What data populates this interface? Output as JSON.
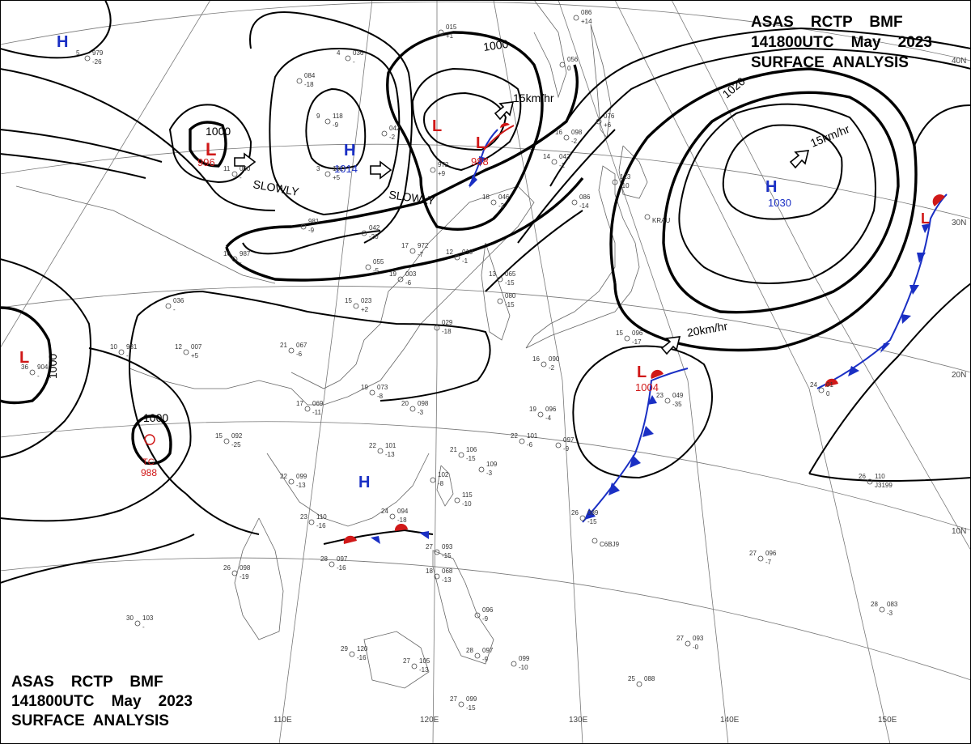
{
  "header_top": {
    "line1": "ASAS    RCTP    BMF",
    "line2": "141800UTC    May    2023",
    "line3": "SURFACE  ANALYSIS"
  },
  "header_bottom": {
    "line1": "ASAS    RCTP    BMF",
    "line2": "141800UTC    May    2023",
    "line3": "SURFACE  ANALYSIS"
  },
  "lat_labels": [
    "40N",
    "30N",
    "20N",
    "10N"
  ],
  "lon_labels": [
    "110E",
    "120E",
    "130E",
    "140E",
    "150E"
  ],
  "centers": [
    {
      "type": "H",
      "color": "#1a2fc4"
    },
    {
      "type": "L",
      "value": "996",
      "color": "#d01818"
    },
    {
      "type": "H",
      "value": "1014",
      "color": "#1a2fc4"
    },
    {
      "type": "L",
      "color": "#d01818"
    },
    {
      "type": "L",
      "value": "988",
      "color": "#d01818"
    },
    {
      "type": "H",
      "value": "1030",
      "color": "#1a2fc4"
    },
    {
      "type": "L",
      "color": "#d01818"
    },
    {
      "type": "L",
      "value": "1004",
      "color": "#d01818"
    },
    {
      "type": "L",
      "color": "#d01818"
    },
    {
      "type": "H",
      "color": "#1a2fc4"
    }
  ],
  "typhoon": {
    "label": "TC",
    "value": "988",
    "color": "#d01818"
  },
  "contour_labels": [
    "1000",
    "1000",
    "1000",
    "1000",
    "1020"
  ],
  "motion_labels": [
    "SLOWLY",
    "SLOWLY",
    "15km/hr",
    "15km/hr",
    "20km/hr"
  ],
  "stations": [
    {
      "t": "5",
      "p": "979",
      "td": "-26"
    },
    {
      "t": "4",
      "p": "036",
      "td": "-"
    },
    {
      "t": "",
      "p": "084",
      "td": "-18"
    },
    {
      "t": "",
      "p": "015",
      "td": "+1"
    },
    {
      "t": "",
      "p": "086",
      "td": "+14"
    },
    {
      "t": "",
      "p": "056",
      "td": "0"
    },
    {
      "t": "9",
      "p": "118",
      "td": "-9"
    },
    {
      "t": "",
      "p": "042",
      "td": "-2"
    },
    {
      "t": "11",
      "p": "030",
      "td": "-"
    },
    {
      "t": "3",
      "p": "182",
      "td": "+5"
    },
    {
      "t": "",
      "p": "972",
      "td": "+9"
    },
    {
      "t": "16",
      "p": "098",
      "td": "-2"
    },
    {
      "t": "14",
      "p": "042",
      "td": "-1"
    },
    {
      "t": "",
      "p": "076",
      "td": "+6"
    },
    {
      "t": "18",
      "p": "046",
      "td": "-3"
    },
    {
      "t": "",
      "p": "086",
      "td": "-14"
    },
    {
      "t": "",
      "p": "123",
      "td": "-10"
    },
    {
      "t": "",
      "p": "981",
      "td": "-9"
    },
    {
      "t": "",
      "p": "042",
      "td": "-20"
    },
    {
      "t": "16",
      "p": "987",
      "td": "-"
    },
    {
      "t": "17",
      "p": "972",
      "td": "-7"
    },
    {
      "t": "12",
      "p": "019",
      "td": "-1"
    },
    {
      "t": "",
      "p": "055",
      "td": "-5"
    },
    {
      "t": "19",
      "p": "003",
      "td": "-6"
    },
    {
      "t": "13",
      "p": "065",
      "td": "-15"
    },
    {
      "t": "",
      "p": "080",
      "td": "-15"
    },
    {
      "t": "",
      "p": "036",
      "td": "-"
    },
    {
      "t": "15",
      "p": "023",
      "td": "+2"
    },
    {
      "t": "",
      "p": "029",
      "td": "-18"
    },
    {
      "t": "10",
      "p": "931",
      "td": "-"
    },
    {
      "t": "12",
      "p": "007",
      "td": "+5"
    },
    {
      "t": "21",
      "p": "067",
      "td": "-6"
    },
    {
      "t": "36",
      "p": "904",
      "td": "-"
    },
    {
      "t": "19",
      "p": "073",
      "td": "-8"
    },
    {
      "t": "20",
      "p": "098",
      "td": "-3"
    },
    {
      "t": "17",
      "p": "069",
      "td": "-11"
    },
    {
      "t": "15",
      "p": "096",
      "td": "-17"
    },
    {
      "t": "16",
      "p": "090",
      "td": "-2"
    },
    {
      "t": "19",
      "p": "096",
      "td": "-4"
    },
    {
      "t": "22",
      "p": "101",
      "td": "-6"
    },
    {
      "t": "",
      "p": "097",
      "td": "-9"
    },
    {
      "t": "23",
      "p": "049",
      "td": "-35"
    },
    {
      "t": "24",
      "p": "01",
      "td": "0"
    },
    {
      "t": "15",
      "p": "092",
      "td": "-25"
    },
    {
      "t": "22",
      "p": "101",
      "td": "-13"
    },
    {
      "t": "21",
      "p": "106",
      "td": "-15"
    },
    {
      "t": "",
      "p": "109",
      "td": "-3"
    },
    {
      "t": "22",
      "p": "099",
      "td": "-13"
    },
    {
      "t": "",
      "p": "102",
      "td": "-8"
    },
    {
      "t": "",
      "p": "115",
      "td": "-10"
    },
    {
      "t": "23",
      "p": "110",
      "td": "-16"
    },
    {
      "t": "24",
      "p": "094",
      "td": "-18"
    },
    {
      "t": "26",
      "p": "089",
      "td": "-15"
    },
    {
      "t": "26",
      "p": "110",
      "td": "J3199"
    },
    {
      "t": "28",
      "p": "097",
      "td": "-16"
    },
    {
      "t": "27",
      "p": "093",
      "td": "-15"
    },
    {
      "t": "18",
      "p": "068",
      "td": "-13"
    },
    {
      "t": "26",
      "p": "098",
      "td": "-19"
    },
    {
      "t": "27",
      "p": "096",
      "td": "-7"
    },
    {
      "t": "28",
      "p": "083",
      "td": "-3"
    },
    {
      "t": "",
      "p": "096",
      "td": "-9"
    },
    {
      "t": "30",
      "p": "103",
      "td": "-"
    },
    {
      "t": "29",
      "p": "120",
      "td": "-16"
    },
    {
      "t": "27",
      "p": "105",
      "td": "-13"
    },
    {
      "t": "28",
      "p": "097",
      "td": "-9"
    },
    {
      "t": "",
      "p": "099",
      "td": "-10"
    },
    {
      "t": "27",
      "p": "093",
      "td": "-0"
    },
    {
      "t": "25",
      "p": "088",
      "td": ""
    },
    {
      "t": "27",
      "p": "099",
      "td": "-15"
    },
    {
      "t": "",
      "p": "",
      "td": "KRAU"
    },
    {
      "t": "",
      "p": "",
      "td": "C6BJ9"
    }
  ]
}
